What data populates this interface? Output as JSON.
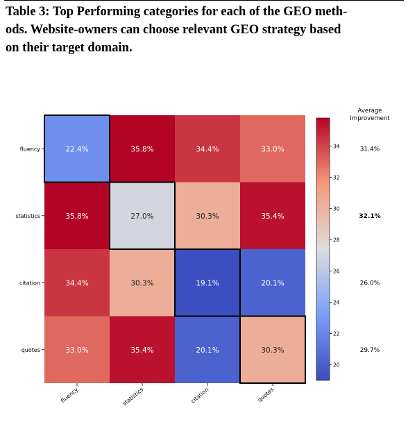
{
  "caption": {
    "line1": "Table 3: Top Performing categories for each of the GEO meth-",
    "line2": "ods. Website-owners can choose relevant GEO strategy based",
    "line3": "on their target domain."
  },
  "chart_data": {
    "type": "heatmap",
    "rows": [
      "fluency",
      "statistics",
      "citation",
      "quotes"
    ],
    "columns": [
      "fluency",
      "statistics",
      "citation",
      "quotes"
    ],
    "values": [
      [
        22.4,
        35.8,
        34.4,
        33.0
      ],
      [
        35.8,
        27.0,
        30.3,
        35.4
      ],
      [
        34.4,
        30.3,
        19.1,
        20.1
      ],
      [
        33.0,
        35.4,
        20.1,
        30.3
      ]
    ],
    "labels": [
      [
        "22.4%",
        "35.8%",
        "34.4%",
        "33.0%"
      ],
      [
        "35.8%",
        "27.0%",
        "30.3%",
        "35.4%"
      ],
      [
        "34.4%",
        "30.3%",
        "19.1%",
        "20.1%"
      ],
      [
        "33.0%",
        "35.4%",
        "20.1%",
        "30.3%"
      ]
    ],
    "highlighted_cells": [
      [
        0,
        0
      ],
      [
        1,
        1
      ],
      [
        2,
        2
      ],
      [
        3,
        3
      ]
    ],
    "colormap": "coolwarm",
    "colorbar": {
      "range": [
        19,
        35.8
      ],
      "ticks": [
        "20",
        "22",
        "24",
        "26",
        "28",
        "30",
        "32",
        "34"
      ]
    },
    "side_column": {
      "title_line1": "Average",
      "title_line2": "Improvement",
      "values": [
        "31.4%",
        "32.1%",
        "26.0%",
        "29.7%"
      ],
      "bold_index": 1
    }
  }
}
